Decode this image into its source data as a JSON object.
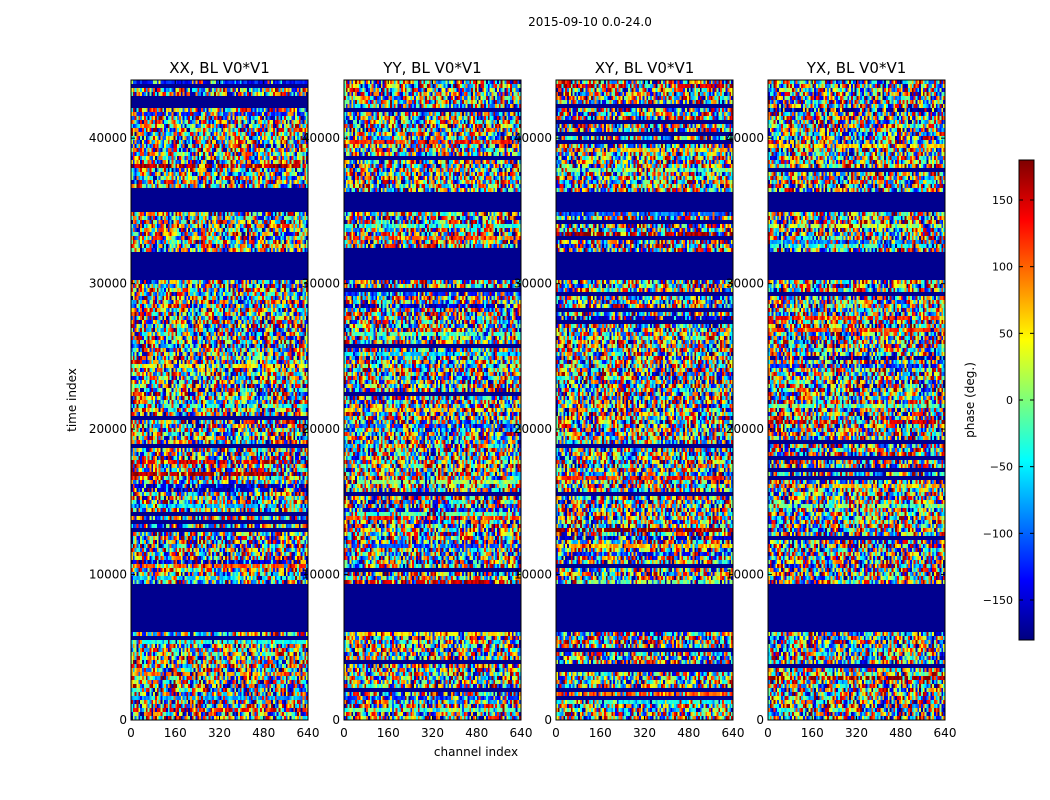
{
  "suptitle": "2015-09-10 0.0-24.0",
  "chart_data": {
    "type": "heatmap",
    "panels": [
      {
        "title": "XX, BL V0*V1"
      },
      {
        "title": "YY, BL V0*V1"
      },
      {
        "title": "XY, BL V0*V1"
      },
      {
        "title": "YX, BL V0*V1"
      }
    ],
    "xlabel": "channel index",
    "ylabel": "time index",
    "xlim": [
      0,
      640
    ],
    "ylim": [
      0,
      44000
    ],
    "xticks": [
      0,
      160,
      320,
      480,
      640
    ],
    "yticks": [
      0,
      10000,
      20000,
      30000,
      40000
    ],
    "colorbar": {
      "label": "phase (deg.)",
      "range": [
        -180,
        180
      ],
      "ticks": [
        -150,
        -100,
        -50,
        0,
        50,
        100,
        150
      ],
      "colormap": "jet"
    },
    "flagged_rows": [
      [
        6000,
        9300
      ],
      [
        30200,
        32200
      ],
      [
        34900,
        36300
      ]
    ],
    "colors": {
      "flagged": "#00008f"
    }
  }
}
